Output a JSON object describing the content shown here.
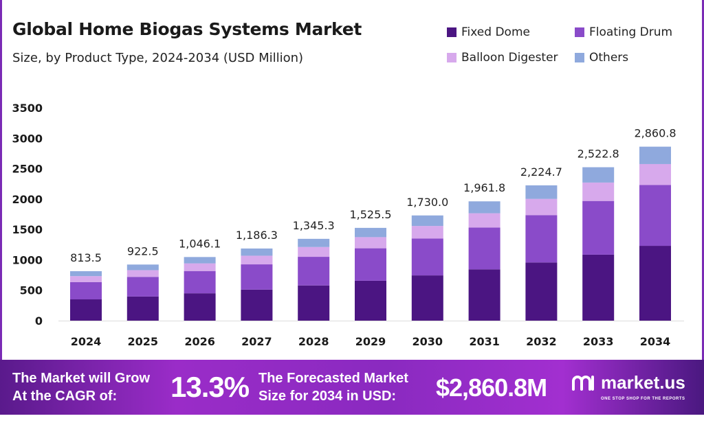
{
  "chart_data": {
    "type": "bar",
    "stacked": true,
    "title": "Global Home Biogas Systems Market",
    "subtitle": "Size, by Product Type, 2024-2034 (USD Million)",
    "xlabel": "",
    "ylabel": "",
    "ylim": [
      0,
      3500
    ],
    "yticks": [
      0,
      500,
      1000,
      1500,
      2000,
      2500,
      3000,
      3500
    ],
    "grid": false,
    "legend_position": "top-right",
    "categories": [
      "2024",
      "2025",
      "2026",
      "2027",
      "2028",
      "2029",
      "2030",
      "2031",
      "2032",
      "2033",
      "2034"
    ],
    "totals": [
      "813.5",
      "922.5",
      "1,046.1",
      "1,186.3",
      "1,345.3",
      "1,525.5",
      "1,730.0",
      "1,961.8",
      "2,224.7",
      "2,522.8",
      "2,860.8"
    ],
    "series": [
      {
        "name": "Fixed Dome",
        "color": "#4b1582",
        "values": [
          349.8,
          396.7,
          449.8,
          510.1,
          578.5,
          656.0,
          743.9,
          843.6,
          956.6,
          1084.8,
          1230.1
        ]
      },
      {
        "name": "Floating Drum",
        "color": "#8a4bc9",
        "values": [
          284.7,
          322.9,
          366.1,
          415.2,
          470.9,
          533.9,
          605.5,
          686.6,
          778.6,
          883.0,
          1001.3
        ]
      },
      {
        "name": "Balloon Digester",
        "color": "#d7a9ec",
        "values": [
          97.6,
          110.7,
          125.5,
          142.4,
          161.4,
          183.1,
          207.6,
          235.4,
          267.0,
          302.7,
          343.3
        ]
      },
      {
        "name": "Others",
        "color": "#8fa9dd",
        "values": [
          81.4,
          92.2,
          104.7,
          118.6,
          134.5,
          152.5,
          173.0,
          196.2,
          222.5,
          252.3,
          286.1
        ]
      }
    ]
  },
  "banner": {
    "cagr_text_1": "The Market will Grow",
    "cagr_text_2": "At the CAGR of:",
    "cagr_value": "13.3%",
    "forecast_text_1": "The Forecasted Market",
    "forecast_text_2": "Size for 2034 in USD:",
    "forecast_value": "$2,860.8M",
    "logo_text": "market.us",
    "logo_tagline": "ONE STOP SHOP FOR THE REPORTS"
  }
}
